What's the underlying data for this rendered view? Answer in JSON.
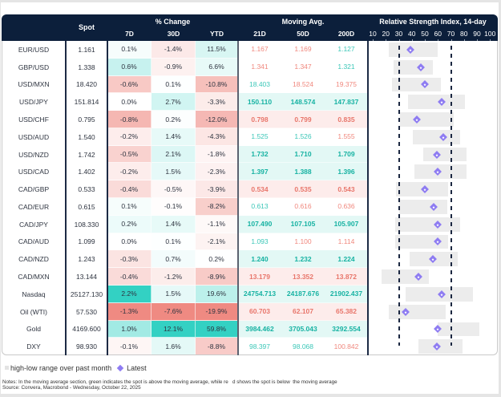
{
  "colors": {
    "header_bg": "#0c1f3b",
    "positive": "#33d1c3",
    "negative": "#ef8a82",
    "ma_up": "#3cc7b8",
    "ma_up_strong": "#16b2a2",
    "ma_down": "#f0887e",
    "ma_down_strong": "#e8766b",
    "ma_up_bg": "#e3f8f5",
    "ma_down_bg": "#fdeceb",
    "rsi_range": "#ececec",
    "rsi_latest": "#8e7cf2"
  },
  "chart_data": {
    "type": "table",
    "title": "",
    "columns": {
      "spot": "Spot",
      "pct_change_group": "% Change",
      "pct_change": [
        "7D",
        "30D",
        "YTD"
      ],
      "moving_avg_group": "Moving Avg.",
      "moving_avg": [
        "21D",
        "50D",
        "200D"
      ],
      "rsi_group": "Relative Strength Index, 14-day"
    },
    "rsi_axis": {
      "ticks": [
        10,
        20,
        30,
        40,
        50,
        60,
        70,
        80,
        90,
        100
      ],
      "range": [
        10,
        100
      ],
      "thresholds": [
        30,
        70
      ]
    },
    "rows": [
      {
        "name": "EUR/USD",
        "spot": "1.161",
        "pct_change": [
          "0.1%",
          "-1.4%",
          "11.5%"
        ],
        "moving_avg": [
          "1.167",
          "1.169",
          "1.127"
        ],
        "rsi": {
          "low": 22,
          "high": 60,
          "latest": 39
        }
      },
      {
        "name": "GBP/USD",
        "spot": "1.338",
        "pct_change": [
          "0.6%",
          "-0.9%",
          "6.6%"
        ],
        "moving_avg": [
          "1.341",
          "1.347",
          "1.321"
        ],
        "rsi": {
          "low": 26,
          "high": 56,
          "latest": 47
        }
      },
      {
        "name": "USD/MXN",
        "spot": "18.420",
        "pct_change": [
          "-0.6%",
          "0.1%",
          "-10.8%"
        ],
        "moving_avg": [
          "18.403",
          "18.524",
          "19.375"
        ],
        "rsi": {
          "low": 25,
          "high": 62,
          "latest": 50
        }
      },
      {
        "name": "USD/JPY",
        "spot": "151.814",
        "pct_change": [
          "0.0%",
          "2.7%",
          "-3.3%"
        ],
        "moving_avg": [
          "150.110",
          "148.574",
          "147.837"
        ],
        "rsi": {
          "low": 37,
          "high": 81,
          "latest": 63
        }
      },
      {
        "name": "USD/CHF",
        "spot": "0.795",
        "pct_change": [
          "-0.8%",
          "0.2%",
          "-12.0%"
        ],
        "moving_avg": [
          "0.798",
          "0.799",
          "0.835"
        ],
        "rsi": {
          "low": 31,
          "high": 72,
          "latest": 44
        }
      },
      {
        "name": "USD/AUD",
        "spot": "1.540",
        "pct_change": [
          "-0.2%",
          "1.4%",
          "-4.3%"
        ],
        "moving_avg": [
          "1.525",
          "1.526",
          "1.555"
        ],
        "rsi": {
          "low": 41,
          "high": 77,
          "latest": 64
        }
      },
      {
        "name": "USD/NZD",
        "spot": "1.742",
        "pct_change": [
          "-0.5%",
          "2.1%",
          "-1.8%"
        ],
        "moving_avg": [
          "1.732",
          "1.710",
          "1.709"
        ],
        "rsi": {
          "low": 49,
          "high": 82,
          "latest": 59
        }
      },
      {
        "name": "USD/CAD",
        "spot": "1.402",
        "pct_change": [
          "-0.2%",
          "1.5%",
          "-2.3%"
        ],
        "moving_avg": [
          "1.397",
          "1.388",
          "1.396"
        ],
        "rsi": {
          "low": 42,
          "high": 82,
          "latest": 60
        }
      },
      {
        "name": "CAD/GBP",
        "spot": "0.533",
        "pct_change": [
          "-0.4%",
          "-0.5%",
          "-3.9%"
        ],
        "moving_avg": [
          "0.534",
          "0.535",
          "0.543"
        ],
        "rsi": {
          "low": 28,
          "high": 68,
          "latest": 50
        }
      },
      {
        "name": "CAD/EUR",
        "spot": "0.615",
        "pct_change": [
          "0.1%",
          "-0.1%",
          "-8.2%"
        ],
        "moving_avg": [
          "0.613",
          "0.616",
          "0.636"
        ],
        "rsi": {
          "low": 30,
          "high": 67,
          "latest": 57
        }
      },
      {
        "name": "CAD/JPY",
        "spot": "108.330",
        "pct_change": [
          "0.2%",
          "1.4%",
          "-1.1%"
        ],
        "moving_avg": [
          "107.490",
          "107.105",
          "105.907"
        ],
        "rsi": {
          "low": 27,
          "high": 77,
          "latest": 60
        }
      },
      {
        "name": "CAD/AUD",
        "spot": "1.099",
        "pct_change": [
          "0.0%",
          "0.1%",
          "-2.1%"
        ],
        "moving_avg": [
          "1.093",
          "1.100",
          "1.114"
        ],
        "rsi": {
          "low": 27,
          "high": 68,
          "latest": 60
        }
      },
      {
        "name": "CAD/NZD",
        "spot": "1.243",
        "pct_change": [
          "-0.3%",
          "0.7%",
          "0.2%"
        ],
        "moving_avg": [
          "1.240",
          "1.232",
          "1.224"
        ],
        "rsi": {
          "low": 38,
          "high": 75,
          "latest": 56
        }
      },
      {
        "name": "CAD/MXN",
        "spot": "13.144",
        "pct_change": [
          "-0.4%",
          "-1.2%",
          "-8.9%"
        ],
        "moving_avg": [
          "13.179",
          "13.352",
          "13.872"
        ],
        "rsi": {
          "low": 17,
          "high": 53,
          "latest": 45
        }
      },
      {
        "name": "Nasdaq",
        "spot": "25127.130",
        "pct_change": [
          "2.2%",
          "1.5%",
          "19.6%"
        ],
        "moving_avg": [
          "24754.713",
          "24187.676",
          "21902.437"
        ],
        "rsi": {
          "low": 35,
          "high": 87,
          "latest": 63
        }
      },
      {
        "name": "Oil (WTI)",
        "spot": "57.530",
        "pct_change": [
          "-1.3%",
          "-7.6%",
          "-19.9%"
        ],
        "moving_avg": [
          "60.703",
          "62.107",
          "65.382"
        ],
        "rsi": {
          "low": 22,
          "high": 66,
          "latest": 35
        }
      },
      {
        "name": "Gold",
        "spot": "4169.600",
        "pct_change": [
          "1.0%",
          "12.1%",
          "59.8%"
        ],
        "moving_avg": [
          "3984.462",
          "3705.043",
          "3292.554"
        ],
        "rsi": {
          "low": 60,
          "high": 92,
          "latest": 60
        }
      },
      {
        "name": "DXY",
        "spot": "98.930",
        "pct_change": [
          "-0.1%",
          "1.6%",
          "-8.8%"
        ],
        "moving_avg": [
          "98.397",
          "98.068",
          "100.842"
        ],
        "rsi": {
          "low": 45,
          "high": 79,
          "latest": 59
        }
      }
    ]
  },
  "legend": {
    "range_label": "high-low range over past month",
    "latest_label": "Latest"
  },
  "footer": {
    "notes": "Notes: In the moving average section, green indicates the spot is above the moving average, while re   d shows the spot is below  the moving average",
    "source": "Source: Convera, Macrobond - Wednesday, October 22, 2025"
  }
}
